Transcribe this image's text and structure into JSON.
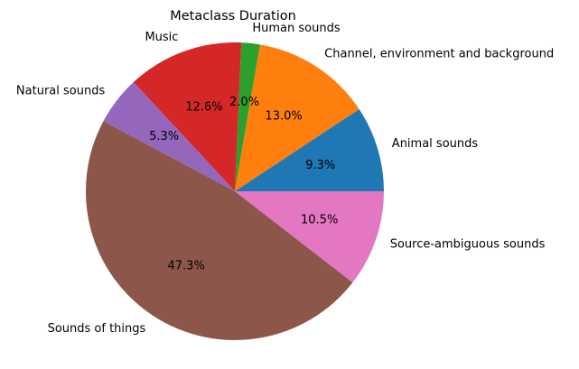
{
  "chart_data": {
    "type": "pie",
    "title": "Metaclass Duration",
    "start_angle_deg": 0,
    "direction": "counterclockwise",
    "slices": [
      {
        "label": "Animal sounds",
        "pct": 9.3,
        "pct_label": "9.3%",
        "color": "#1f77b4"
      },
      {
        "label": "Channel, environment and background",
        "pct": 13.0,
        "pct_label": "13.0%",
        "color": "#ff7f0e"
      },
      {
        "label": "Human sounds",
        "pct": 2.0,
        "pct_label": "2.0%",
        "color": "#2ca02c"
      },
      {
        "label": "Music",
        "pct": 12.6,
        "pct_label": "12.6%",
        "color": "#d62728"
      },
      {
        "label": "Natural sounds",
        "pct": 5.3,
        "pct_label": "5.3%",
        "color": "#9467bd"
      },
      {
        "label": "Sounds of things",
        "pct": 47.3,
        "pct_label": "47.3%",
        "color": "#8c564b"
      },
      {
        "label": "Source-ambiguous sounds",
        "pct": 10.5,
        "pct_label": "10.5%",
        "color": "#e377c2"
      }
    ]
  }
}
